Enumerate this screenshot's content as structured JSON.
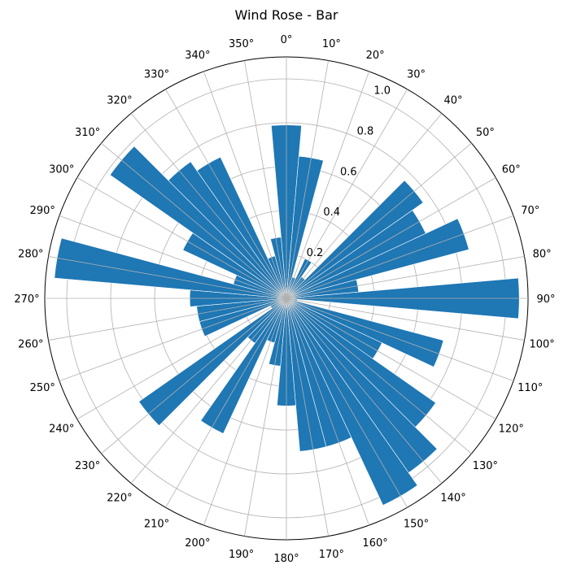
{
  "chart_data": {
    "type": "bar",
    "projection": "polar",
    "title": "Wind Rose - Bar",
    "theta_zero": "N",
    "theta_direction": "clockwise",
    "theta_tick_labels": [
      "0°",
      "10°",
      "20°",
      "30°",
      "40°",
      "50°",
      "60°",
      "70°",
      "80°",
      "90°",
      "100°",
      "110°",
      "120°",
      "130°",
      "140°",
      "150°",
      "160°",
      "170°",
      "180°",
      "190°",
      "200°",
      "210°",
      "220°",
      "230°",
      "240°",
      "250°",
      "260°",
      "270°",
      "280°",
      "290°",
      "300°",
      "310°",
      "320°",
      "330°",
      "340°",
      "350°"
    ],
    "r_ticks": [
      0.2,
      0.4,
      0.6,
      0.8,
      1.0
    ],
    "r_tick_labels": [
      "0.2",
      "0.4",
      "0.6",
      "0.8",
      "1.0"
    ],
    "rlim": [
      0,
      1.1
    ],
    "grid": true,
    "bar_color": "#1f77b4",
    "bar_width_deg": 10,
    "directions_deg": [
      0,
      10,
      20,
      30,
      40,
      50,
      60,
      70,
      80,
      90,
      100,
      110,
      120,
      130,
      140,
      150,
      160,
      170,
      180,
      190,
      200,
      210,
      220,
      230,
      240,
      250,
      260,
      270,
      280,
      290,
      300,
      310,
      320,
      330,
      340,
      350
    ],
    "values": [
      0.79,
      0.65,
      0.1,
      0.2,
      0.12,
      0.76,
      0.7,
      0.86,
      0.33,
      1.06,
      0.05,
      0.74,
      0.48,
      0.83,
      0.97,
      1.04,
      0.7,
      0.7,
      0.49,
      0.31,
      0.21,
      0.68,
      0.25,
      0.82,
      0.08,
      0.41,
      0.41,
      0.44,
      1.06,
      0.25,
      0.52,
      0.98,
      0.76,
      0.71,
      0.2,
      0.28
    ]
  }
}
